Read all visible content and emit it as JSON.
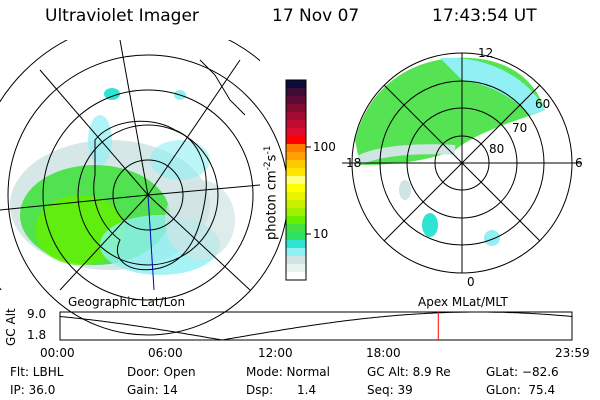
{
  "header": {
    "instrument": "Ultraviolet Imager",
    "date": "17 Nov 07",
    "time": "17:43:54 UT"
  },
  "colorbar": {
    "label": "photon cm",
    "label_exp1": "-2",
    "label_mid": "s",
    "label_exp2": "-1",
    "ticks": [
      "100",
      "10"
    ],
    "colors": [
      "#0c0c3c",
      "#3c0c34",
      "#5c0c34",
      "#800c30",
      "#a00c34",
      "#c00c30",
      "#dc0c30",
      "#ff0000",
      "#ff7c00",
      "#ffa000",
      "#ffc800",
      "#ffe400",
      "#ffff80",
      "#ffff00",
      "#e8f400",
      "#c8f000",
      "#a0f000",
      "#64f000",
      "#44e040",
      "#30e064",
      "#30e4d4",
      "#90f0f4",
      "#d0e4e4",
      "#e8f4f0",
      "#ffffff"
    ]
  },
  "maps": {
    "left_label": "Geographic Lat/Lon",
    "right_label": "Apex MLat/MLT",
    "mlt_labels": [
      "12",
      "18",
      "6",
      "0"
    ],
    "mlat_labels": [
      "60",
      "70",
      "80"
    ]
  },
  "altitude_plot": {
    "ylabel": "GC Alt",
    "yticks": [
      "9.0",
      "1.8"
    ],
    "xticks": [
      "00:00",
      "06:00",
      "12:00",
      "18:00",
      "23:59"
    ],
    "marker_time": "17:43:54",
    "marker_color": "#ff0000"
  },
  "status": {
    "filter": "Flt: LBHL",
    "ip": "IP: 36.0",
    "door": "Door: Open",
    "gain": "Gain: 14",
    "mode": "Mode: Normal",
    "dsp_label": "Dsp:",
    "dsp_value": "1.4",
    "gc_alt": "GC Alt: 8.9 Re",
    "seq": "Seq: 39",
    "glat": "GLat: −82.6",
    "glon": "GLon:  75.4"
  }
}
